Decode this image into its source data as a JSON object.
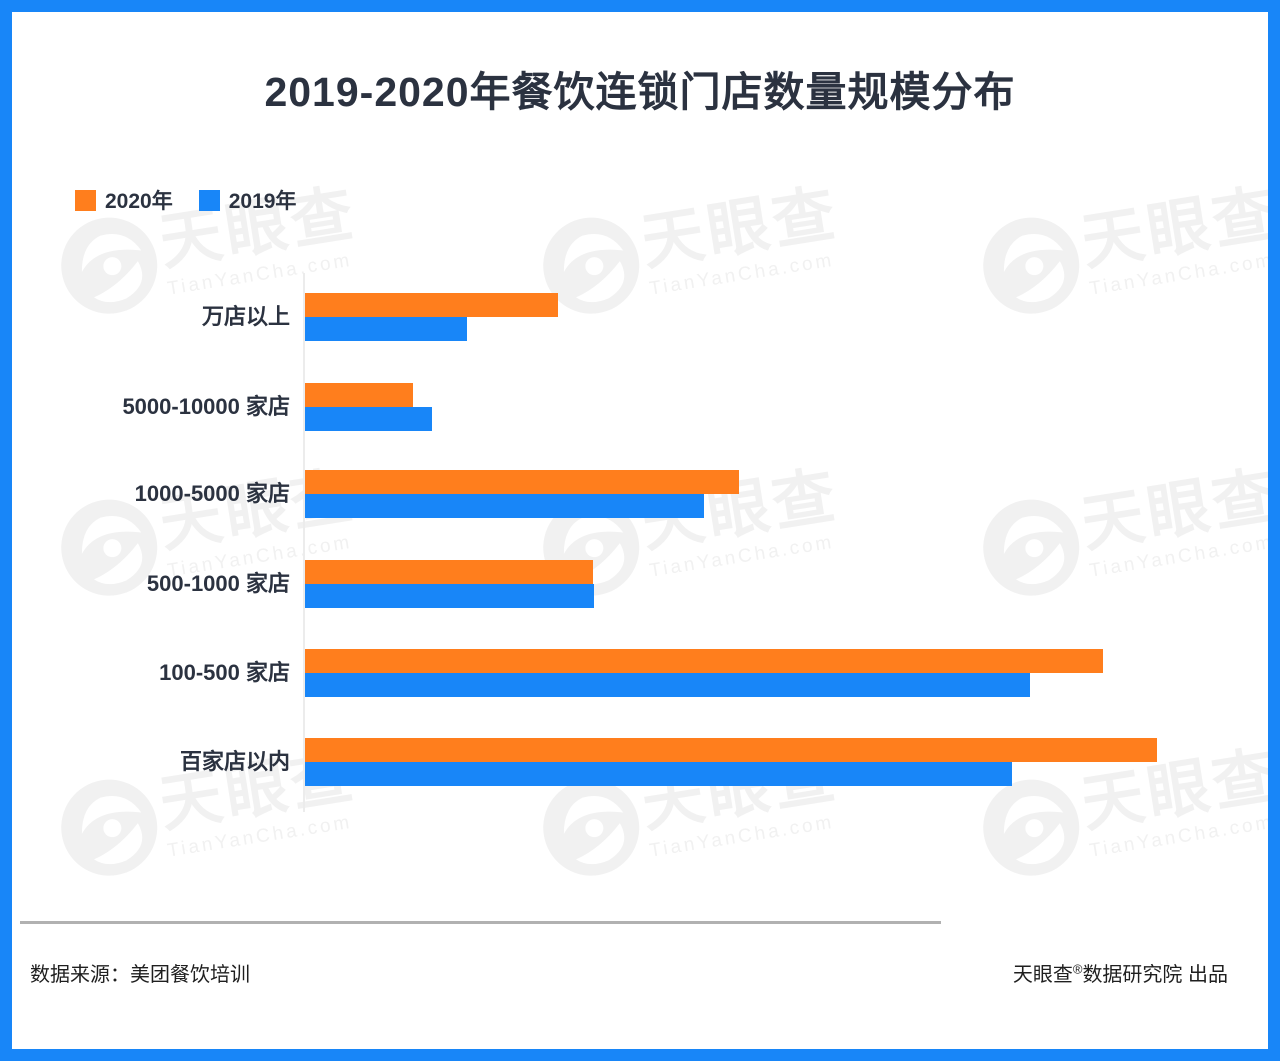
{
  "page": {
    "title": "2019-2020年餐饮连锁门店数量规模分布",
    "footer": {
      "source": "数据来源：美团餐饮培训",
      "brand": "天眼查",
      "reg_mark": "®",
      "brand_suffix": "数据研究院 出品"
    }
  },
  "watermark": {
    "logo_text": "天眼查",
    "url_text": "TianYanCha.com"
  },
  "colors": {
    "accent_orange": "#FF7E1D",
    "accent_blue": "#1886F8",
    "frame_blue": "#1886F8",
    "text_dark": "#2B3240",
    "watermark_gray": "#f1f1f1"
  },
  "chart_data": {
    "type": "bar",
    "orientation": "horizontal",
    "title": "2019-2020年餐饮连锁门店数量规模分布",
    "categories": [
      "万店以上",
      "5000-10000 家店",
      "1000-5000 家店",
      "500-1000 家店",
      "100-500 家店",
      "百家店以内"
    ],
    "series": [
      {
        "name": "2020年",
        "color": "#FF7E1D",
        "values": [
          29.7,
          12.7,
          50.9,
          33.8,
          93.7,
          100.0
        ]
      },
      {
        "name": "2019年",
        "color": "#1886F8",
        "values": [
          19.0,
          14.9,
          46.8,
          33.9,
          85.1,
          83.0
        ]
      }
    ],
    "x_range": [
      0,
      100
    ],
    "values_estimated": true,
    "numeric_axis_visible": false,
    "grid": false,
    "legend_position": "top-left"
  }
}
